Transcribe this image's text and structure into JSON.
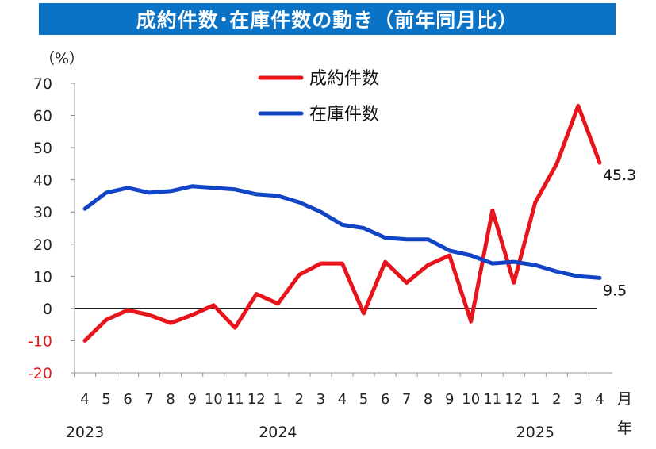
{
  "chart_data": {
    "type": "line",
    "title": "成約件数･在庫件数の動き（前年同月比）",
    "ylabel": "（%）",
    "xlabel": "月",
    "year_unit": "年",
    "ylim": [
      -20,
      70
    ],
    "yticks": [
      70,
      60,
      50,
      40,
      30,
      20,
      10,
      0,
      -10,
      -20
    ],
    "grid": false,
    "legend_position": "top-center",
    "categories": [
      "4",
      "5",
      "6",
      "7",
      "8",
      "9",
      "10",
      "11",
      "12",
      "1",
      "2",
      "3",
      "4",
      "5",
      "6",
      "7",
      "8",
      "9",
      "10",
      "11",
      "12",
      "1",
      "2",
      "3",
      "4"
    ],
    "year_labels": [
      {
        "label": "2023",
        "index": 0
      },
      {
        "label": "2024",
        "index": 9
      },
      {
        "label": "2025",
        "index": 21
      }
    ],
    "series": [
      {
        "name": "成約件数",
        "color": "#e8141b",
        "values": [
          -10,
          -3.5,
          -0.5,
          -2,
          -4.5,
          -2,
          1,
          -6,
          4.5,
          1.5,
          10.5,
          14,
          14,
          -1.5,
          14.5,
          8,
          13.5,
          16.5,
          -4,
          30.5,
          8,
          33,
          45,
          63,
          45.3
        ],
        "end_label": "45.3"
      },
      {
        "name": "在庫件数",
        "color": "#1245c6",
        "values": [
          31,
          36,
          37.5,
          36,
          36.5,
          38,
          37.5,
          37,
          35.5,
          35,
          33,
          30,
          26,
          25,
          22,
          21.5,
          21.5,
          18,
          16.5,
          14,
          14.5,
          13.5,
          11.5,
          10,
          9.5
        ],
        "end_label": "9.5"
      }
    ]
  }
}
